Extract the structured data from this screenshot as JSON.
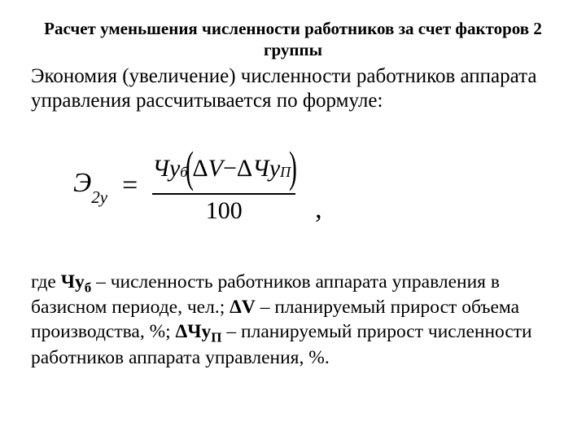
{
  "heading": "Расчет уменьшения численности работников за счет факторов 2 группы",
  "intro": "Экономия (увеличение) численности работников аппарата управления рассчитывается по формуле:",
  "formula": {
    "lhs_main": "Э",
    "lhs_sub": "2у",
    "equals": "=",
    "num_var1": "Чу",
    "num_sub1": "б",
    "lparen": "(",
    "delta1": "Δ",
    "num_var2": "V",
    "minus": " − ",
    "delta2": "Δ",
    "num_var3": "Чу",
    "num_sub3": "П",
    "rparen": ")",
    "denom": "100",
    "comma": ","
  },
  "where": {
    "label": "где ",
    "t1a": "Чу",
    "t1b": "б",
    "d1": " – численность работников аппарата управления в базисном периоде, чел.; ",
    "t2": "ΔV",
    "d2": " – планируемый прирост объема производства, %; ",
    "t3a": "ΔЧу",
    "t3b": "П",
    "d3": " – планируемый прирост численности работников аппарата управления, %."
  }
}
